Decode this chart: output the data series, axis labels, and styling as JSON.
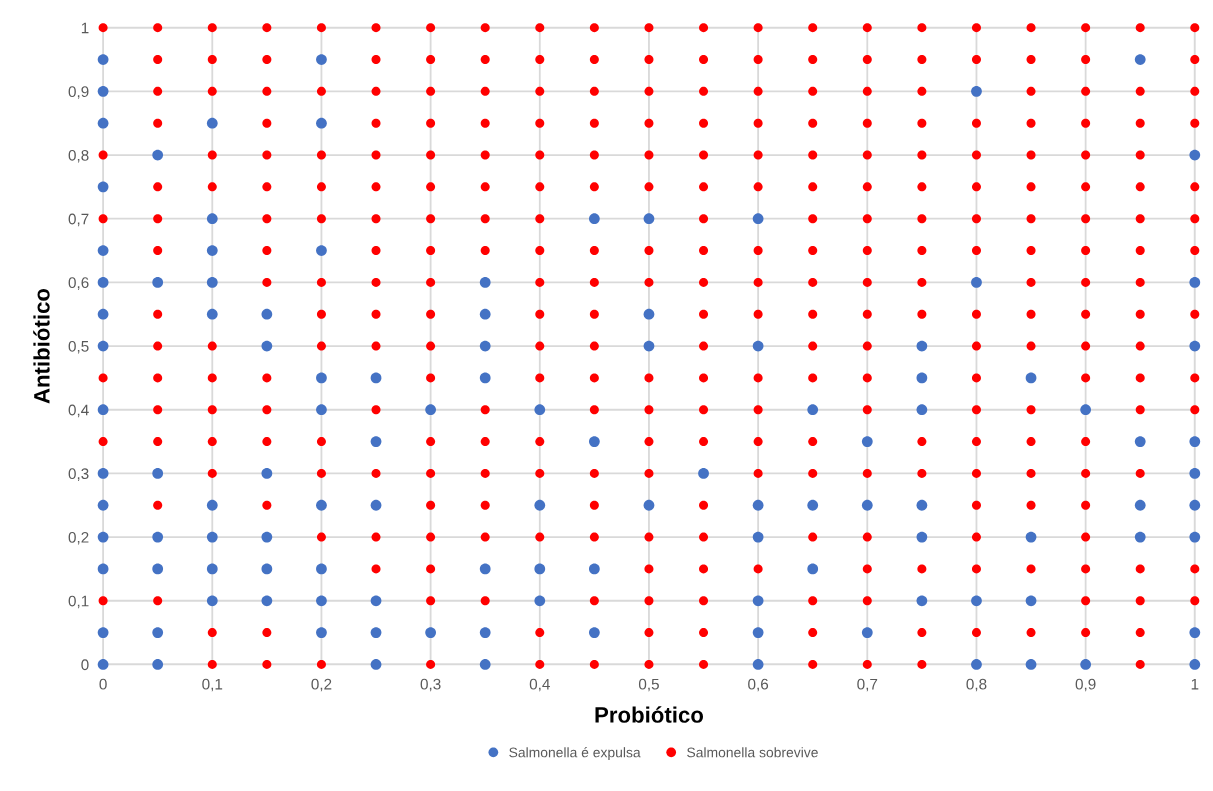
{
  "chart_data": {
    "type": "scatter",
    "xlabel": "Probiótico",
    "ylabel": "Antibiótico",
    "xlim": [
      0,
      1
    ],
    "ylim": [
      0,
      1
    ],
    "xticks": [
      0,
      {
        "value": 0.1,
        "label": "0,1"
      },
      {
        "value": 0.2,
        "label": "0,2"
      },
      {
        "value": 0.3,
        "label": "0,3"
      },
      {
        "value": 0.4,
        "label": "0,4"
      },
      {
        "value": 0.5,
        "label": "0,5"
      },
      {
        "value": 0.6,
        "label": "0,6"
      },
      {
        "value": 0.7,
        "label": "0,7"
      },
      {
        "value": 0.8,
        "label": "0,8"
      },
      {
        "value": 0.9,
        "label": "0,9"
      },
      1
    ],
    "yticks": [
      0,
      {
        "value": 0.1,
        "label": "0,1"
      },
      {
        "value": 0.2,
        "label": "0,2"
      },
      {
        "value": 0.3,
        "label": "0,3"
      },
      {
        "value": 0.4,
        "label": "0,4"
      },
      {
        "value": 0.5,
        "label": "0,5"
      },
      {
        "value": 0.6,
        "label": "0,6"
      },
      {
        "value": 0.7,
        "label": "0,7"
      },
      {
        "value": 0.8,
        "label": "0,8"
      },
      {
        "value": 0.9,
        "label": "0,9"
      },
      1
    ],
    "grid": true,
    "legend": "bottom",
    "marker": "circle",
    "series": [
      {
        "name": "Salmonella é expulsa",
        "color": "#4472c4",
        "x": [
          0,
          0.2,
          0.95,
          0,
          0.8,
          0,
          0.1,
          0.2,
          0.05,
          1,
          0,
          0.1,
          0.45,
          0.5,
          0.6,
          0,
          0.1,
          0.2,
          0,
          0.05,
          0.1,
          0.35,
          0.8,
          1,
          0,
          0.1,
          0.15,
          0.35,
          0.5,
          0,
          0.15,
          0.35,
          0.5,
          0.6,
          0.75,
          1,
          0.2,
          0.25,
          0.35,
          0.75,
          0.85,
          0,
          0.2,
          0.3,
          0.4,
          0.65,
          0.75,
          0.9,
          0.25,
          0.45,
          0.7,
          0.95,
          1,
          0,
          0.05,
          0.15,
          0.55,
          1,
          0,
          0.1,
          0.2,
          0.25,
          0.4,
          0.5,
          0.6,
          0.65,
          0.7,
          0.75,
          0.95,
          1,
          0,
          0.05,
          0.1,
          0.15,
          0.6,
          0.75,
          0.85,
          0.95,
          1,
          0,
          0.05,
          0.1,
          0.15,
          0.2,
          0.35,
          0.4,
          0.45,
          0.65,
          0.1,
          0.15,
          0.2,
          0.25,
          0.4,
          0.6,
          0.75,
          0.8,
          0.85,
          0,
          0.05,
          0.2,
          0.25,
          0.3,
          0.35,
          0.45,
          0.6,
          0.7,
          1,
          0,
          0.05,
          0.25,
          0.35,
          0.6,
          0.8,
          0.85,
          0.9,
          1
        ],
        "values": [
          0.95,
          0.95,
          0.95,
          0.9,
          0.9,
          0.85,
          0.85,
          0.85,
          0.8,
          0.8,
          0.75,
          0.7,
          0.7,
          0.7,
          0.7,
          0.65,
          0.65,
          0.65,
          0.6,
          0.6,
          0.6,
          0.6,
          0.6,
          0.6,
          0.55,
          0.55,
          0.55,
          0.55,
          0.55,
          0.5,
          0.5,
          0.5,
          0.5,
          0.5,
          0.5,
          0.5,
          0.45,
          0.45,
          0.45,
          0.45,
          0.45,
          0.4,
          0.4,
          0.4,
          0.4,
          0.4,
          0.4,
          0.4,
          0.35,
          0.35,
          0.35,
          0.35,
          0.35,
          0.3,
          0.3,
          0.3,
          0.3,
          0.3,
          0.25,
          0.25,
          0.25,
          0.25,
          0.25,
          0.25,
          0.25,
          0.25,
          0.25,
          0.25,
          0.25,
          0.25,
          0.2,
          0.2,
          0.2,
          0.2,
          0.2,
          0.2,
          0.2,
          0.2,
          0.2,
          0.15,
          0.15,
          0.15,
          0.15,
          0.15,
          0.15,
          0.15,
          0.15,
          0.15,
          0.1,
          0.1,
          0.1,
          0.1,
          0.1,
          0.1,
          0.1,
          0.1,
          0.1,
          0.05,
          0.05,
          0.05,
          0.05,
          0.05,
          0.05,
          0.05,
          0.05,
          0.05,
          0.05,
          0,
          0,
          0,
          0,
          0,
          0,
          0,
          0,
          0
        ]
      },
      {
        "name": "Salmonella sobrevive",
        "color": "#ff0000",
        "x": [
          0,
          0.05,
          0.1,
          0.15,
          0.2,
          0.25,
          0.3,
          0.35,
          0.4,
          0.45,
          0.5,
          0.55,
          0.6,
          0.65,
          0.7,
          0.75,
          0.8,
          0.85,
          0.9,
          0.95,
          1,
          0.05,
          0.1,
          0.15,
          0.25,
          0.3,
          0.35,
          0.4,
          0.45,
          0.5,
          0.55,
          0.6,
          0.65,
          0.7,
          0.75,
          0.8,
          0.85,
          0.9,
          1,
          0.05,
          0.1,
          0.15,
          0.2,
          0.25,
          0.3,
          0.35,
          0.4,
          0.45,
          0.5,
          0.55,
          0.6,
          0.65,
          0.7,
          0.75,
          0.85,
          0.9,
          0.95,
          1,
          0.05,
          0.15,
          0.25,
          0.3,
          0.35,
          0.4,
          0.45,
          0.5,
          0.55,
          0.6,
          0.65,
          0.7,
          0.75,
          0.8,
          0.85,
          0.9,
          0.95,
          1,
          0,
          0.1,
          0.15,
          0.2,
          0.25,
          0.3,
          0.35,
          0.4,
          0.45,
          0.5,
          0.55,
          0.6,
          0.65,
          0.7,
          0.75,
          0.8,
          0.85,
          0.9,
          0.95,
          0.05,
          0.1,
          0.15,
          0.2,
          0.25,
          0.3,
          0.35,
          0.4,
          0.45,
          0.5,
          0.55,
          0.6,
          0.65,
          0.7,
          0.75,
          0.8,
          0.85,
          0.9,
          0.95,
          1,
          0,
          0.05,
          0.15,
          0.2,
          0.25,
          0.3,
          0.35,
          0.4,
          0.55,
          0.65,
          0.7,
          0.75,
          0.8,
          0.85,
          0.9,
          0.95,
          1,
          0.05,
          0.15,
          0.25,
          0.3,
          0.35,
          0.4,
          0.45,
          0.5,
          0.55,
          0.6,
          0.65,
          0.7,
          0.75,
          0.8,
          0.85,
          0.9,
          0.95,
          1,
          0.15,
          0.2,
          0.25,
          0.3,
          0.4,
          0.45,
          0.5,
          0.55,
          0.6,
          0.65,
          0.7,
          0.75,
          0.85,
          0.9,
          0.95,
          0.05,
          0.2,
          0.25,
          0.3,
          0.4,
          0.45,
          0.55,
          0.6,
          0.65,
          0.7,
          0.75,
          0.8,
          0.85,
          0.9,
          0.95,
          1,
          0.05,
          0.1,
          0.2,
          0.25,
          0.3,
          0.4,
          0.45,
          0.55,
          0.65,
          0.7,
          0.8,
          0.85,
          0.9,
          0.95,
          0,
          0.05,
          0.1,
          0.15,
          0.3,
          0.4,
          0.45,
          0.5,
          0.55,
          0.6,
          0.65,
          0.7,
          0.8,
          0.9,
          0.95,
          1,
          0.05,
          0.1,
          0.15,
          0.25,
          0.35,
          0.45,
          0.5,
          0.55,
          0.6,
          0.7,
          0.8,
          0.85,
          0.95,
          1,
          0,
          0.05,
          0.1,
          0.15,
          0.2,
          0.3,
          0.35,
          0.4,
          0.5,
          0.55,
          0.6,
          0.65,
          0.75,
          0.8,
          0.85,
          0.9,
          0.1,
          0.2,
          0.25,
          0.3,
          0.35,
          0.4,
          0.45,
          0.5,
          0.6,
          0.65,
          0.7,
          0.75,
          0.8,
          0.85,
          0.9,
          0.95,
          0.05,
          0.15,
          0.3,
          0.35,
          0.45,
          0.55,
          0.8,
          0.85,
          0.9,
          0.2,
          0.25,
          0.3,
          0.35,
          0.4,
          0.45,
          0.5,
          0.55,
          0.65,
          0.7,
          0.8,
          0.9,
          0.25,
          0.3,
          0.5,
          0.55,
          0.6,
          0.7,
          0.75,
          0.8,
          0.85,
          0.9,
          0.95,
          1,
          0,
          0.05,
          0.3,
          0.35,
          0.45,
          0.5,
          0.55,
          0.65,
          0.7,
          0.9,
          0.95,
          1,
          0.1,
          0.15,
          0.4,
          0.5,
          0.55,
          0.65,
          0.75,
          0.8,
          0.85,
          0.9,
          0.95,
          0.1,
          0.15,
          0.2,
          0.3,
          0.4,
          0.45,
          0.5,
          0.55,
          0.65,
          0.7,
          0.75,
          0.95
        ],
        "values": [
          1,
          1,
          1,
          1,
          1,
          1,
          1,
          1,
          1,
          1,
          1,
          1,
          1,
          1,
          1,
          1,
          1,
          1,
          1,
          1,
          1,
          0.95,
          0.95,
          0.95,
          0.95,
          0.95,
          0.95,
          0.95,
          0.95,
          0.95,
          0.95,
          0.95,
          0.95,
          0.95,
          0.95,
          0.95,
          0.95,
          0.95,
          0.95,
          0.9,
          0.9,
          0.9,
          0.9,
          0.9,
          0.9,
          0.9,
          0.9,
          0.9,
          0.9,
          0.9,
          0.9,
          0.9,
          0.9,
          0.9,
          0.9,
          0.9,
          0.9,
          0.9,
          0.85,
          0.85,
          0.85,
          0.85,
          0.85,
          0.85,
          0.85,
          0.85,
          0.85,
          0.85,
          0.85,
          0.85,
          0.85,
          0.85,
          0.85,
          0.85,
          0.85,
          0.85,
          0.8,
          0.8,
          0.8,
          0.8,
          0.8,
          0.8,
          0.8,
          0.8,
          0.8,
          0.8,
          0.8,
          0.8,
          0.8,
          0.8,
          0.8,
          0.8,
          0.8,
          0.8,
          0.8,
          0.75,
          0.75,
          0.75,
          0.75,
          0.75,
          0.75,
          0.75,
          0.75,
          0.75,
          0.75,
          0.75,
          0.75,
          0.75,
          0.75,
          0.75,
          0.75,
          0.75,
          0.75,
          0.75,
          0.75,
          0.7,
          0.7,
          0.7,
          0.7,
          0.7,
          0.7,
          0.7,
          0.7,
          0.7,
          0.7,
          0.7,
          0.7,
          0.7,
          0.7,
          0.7,
          0.7,
          0.7,
          0.65,
          0.65,
          0.65,
          0.65,
          0.65,
          0.65,
          0.65,
          0.65,
          0.65,
          0.65,
          0.65,
          0.65,
          0.65,
          0.65,
          0.65,
          0.65,
          0.65,
          0.65,
          0.6,
          0.6,
          0.6,
          0.6,
          0.6,
          0.6,
          0.6,
          0.6,
          0.6,
          0.6,
          0.6,
          0.6,
          0.6,
          0.6,
          0.6,
          0.55,
          0.55,
          0.55,
          0.55,
          0.55,
          0.55,
          0.55,
          0.55,
          0.55,
          0.55,
          0.55,
          0.55,
          0.55,
          0.55,
          0.55,
          0.55,
          0.5,
          0.5,
          0.5,
          0.5,
          0.5,
          0.5,
          0.5,
          0.5,
          0.5,
          0.5,
          0.5,
          0.5,
          0.5,
          0.5,
          0.45,
          0.45,
          0.45,
          0.45,
          0.45,
          0.45,
          0.45,
          0.45,
          0.45,
          0.45,
          0.45,
          0.45,
          0.45,
          0.45,
          0.45,
          0.45,
          0.4,
          0.4,
          0.4,
          0.4,
          0.4,
          0.4,
          0.4,
          0.4,
          0.4,
          0.4,
          0.4,
          0.4,
          0.4,
          0.4,
          0.35,
          0.35,
          0.35,
          0.35,
          0.35,
          0.35,
          0.35,
          0.35,
          0.35,
          0.35,
          0.35,
          0.35,
          0.35,
          0.35,
          0.35,
          0.35,
          0.3,
          0.3,
          0.3,
          0.3,
          0.3,
          0.3,
          0.3,
          0.3,
          0.3,
          0.3,
          0.3,
          0.3,
          0.3,
          0.3,
          0.3,
          0.3,
          0.25,
          0.25,
          0.25,
          0.25,
          0.25,
          0.25,
          0.25,
          0.25,
          0.25,
          0.2,
          0.2,
          0.2,
          0.2,
          0.2,
          0.2,
          0.2,
          0.2,
          0.2,
          0.2,
          0.2,
          0.2,
          0.15,
          0.15,
          0.15,
          0.15,
          0.15,
          0.15,
          0.15,
          0.15,
          0.15,
          0.15,
          0.15,
          0.15,
          0.1,
          0.1,
          0.1,
          0.1,
          0.1,
          0.1,
          0.1,
          0.1,
          0.1,
          0.1,
          0.1,
          0.1,
          0.05,
          0.05,
          0.05,
          0.05,
          0.05,
          0.05,
          0.05,
          0.05,
          0.05,
          0.05,
          0.05,
          0,
          0,
          0,
          0,
          0,
          0,
          0,
          0,
          0,
          0,
          0,
          0
        ]
      }
    ]
  }
}
